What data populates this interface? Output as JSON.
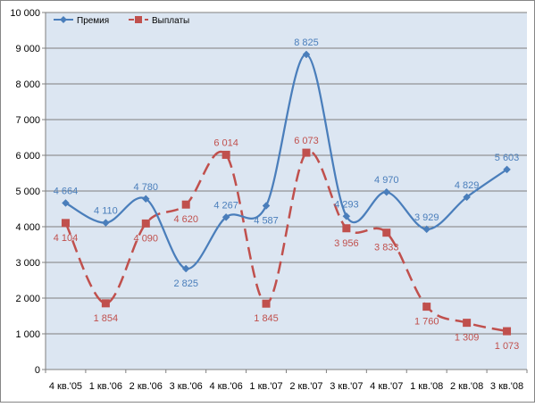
{
  "chart_data": {
    "type": "line",
    "title": "",
    "xlabel": "",
    "ylabel": "",
    "categories": [
      "4 кв.'05",
      "1 кв.'06",
      "2 кв.'06",
      "3 кв.'06",
      "4 кв.'06",
      "1 кв.'07",
      "2 кв.'07",
      "3 кв.'07",
      "4 кв.'07",
      "1 кв.'08",
      "2 кв.'08",
      "3 кв.'08"
    ],
    "ylim": [
      0,
      10000
    ],
    "yticks": [
      0,
      1000,
      2000,
      3000,
      4000,
      5000,
      6000,
      7000,
      8000,
      9000,
      10000
    ],
    "ytick_labels": [
      "0",
      "1 000",
      "2 000",
      "3 000",
      "4 000",
      "5 000",
      "6 000",
      "7 000",
      "8 000",
      "9 000",
      "10 000"
    ],
    "grid": true,
    "legend_position": "top-left",
    "series": [
      {
        "name": "Премия",
        "color": "#4a7ebb",
        "marker": "diamond",
        "line_style": "solid",
        "values": [
          4664,
          4110,
          4780,
          2825,
          4267,
          4587,
          8825,
          4293,
          4970,
          3929,
          4829,
          5603
        ],
        "labels": [
          "4 664",
          "4 110",
          "4 780",
          "2 825",
          "4 267",
          "4 587",
          "8 825",
          "4 293",
          "4 970",
          "3 929",
          "4 829",
          "5 603"
        ],
        "label_positions": [
          "above",
          "above",
          "above",
          "below",
          "above",
          "below",
          "above",
          "above",
          "above",
          "above",
          "above",
          "above"
        ]
      },
      {
        "name": "Выплаты",
        "color": "#c0504d",
        "marker": "square",
        "line_style": "dashed",
        "values": [
          4104,
          1854,
          4090,
          4620,
          6014,
          1845,
          6073,
          3956,
          3833,
          1760,
          1309,
          1073
        ],
        "labels": [
          "4 104",
          "1 854",
          "4 090",
          "4 620",
          "6 014",
          "1 845",
          "6 073",
          "3 956",
          "3 833",
          "1 760",
          "1 309",
          "1 073"
        ],
        "label_positions": [
          "below",
          "below",
          "below",
          "below",
          "above",
          "below",
          "above",
          "below",
          "below",
          "below",
          "below",
          "below"
        ]
      }
    ]
  },
  "colors": {
    "plot_background": "#dce6f2",
    "gridline": "#7f7f7f",
    "axis": "#7f7f7f",
    "frame": "#868686"
  }
}
